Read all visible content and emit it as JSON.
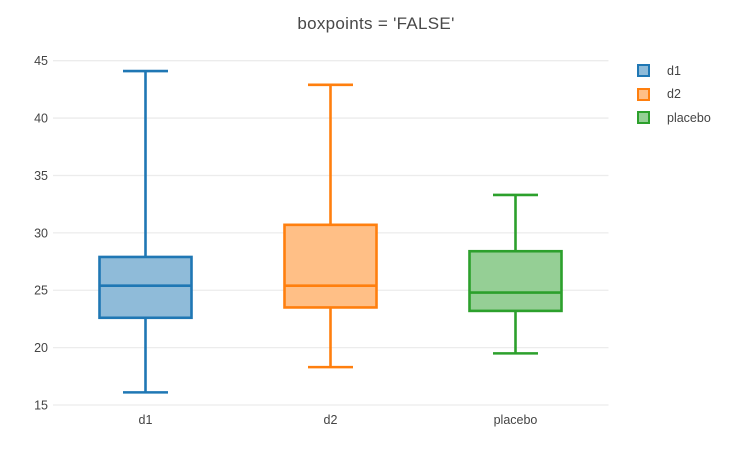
{
  "chart_data": {
    "type": "box",
    "title": "boxpoints = 'FALSE'",
    "xlabel": "",
    "ylabel": "",
    "categories": [
      "d1",
      "d2",
      "placebo"
    ],
    "yticks": [
      45,
      40,
      35,
      30,
      25,
      20,
      15
    ],
    "ylim": [
      14.4,
      46.3
    ],
    "grid": true,
    "grid_color": "#ececec",
    "axis_text_color": "#444444",
    "title_color": "#484848",
    "background_color": "#ffffff",
    "legend_position": "right",
    "series": [
      {
        "name": "d1",
        "color": "#1f77b4",
        "fill": "#8fbbd9",
        "lowerfence": 16.1,
        "q1": 22.6,
        "median": 25.4,
        "q3": 27.9,
        "upperfence": 44.1
      },
      {
        "name": "d2",
        "color": "#ff7f0e",
        "fill": "#ffbf86",
        "lowerfence": 18.3,
        "q1": 23.5,
        "median": 25.4,
        "q3": 30.7,
        "upperfence": 42.9
      },
      {
        "name": "placebo",
        "color": "#2ca02c",
        "fill": "#95cf95",
        "lowerfence": 19.5,
        "q1": 23.2,
        "median": 24.8,
        "q3": 28.4,
        "upperfence": 33.3
      }
    ]
  }
}
